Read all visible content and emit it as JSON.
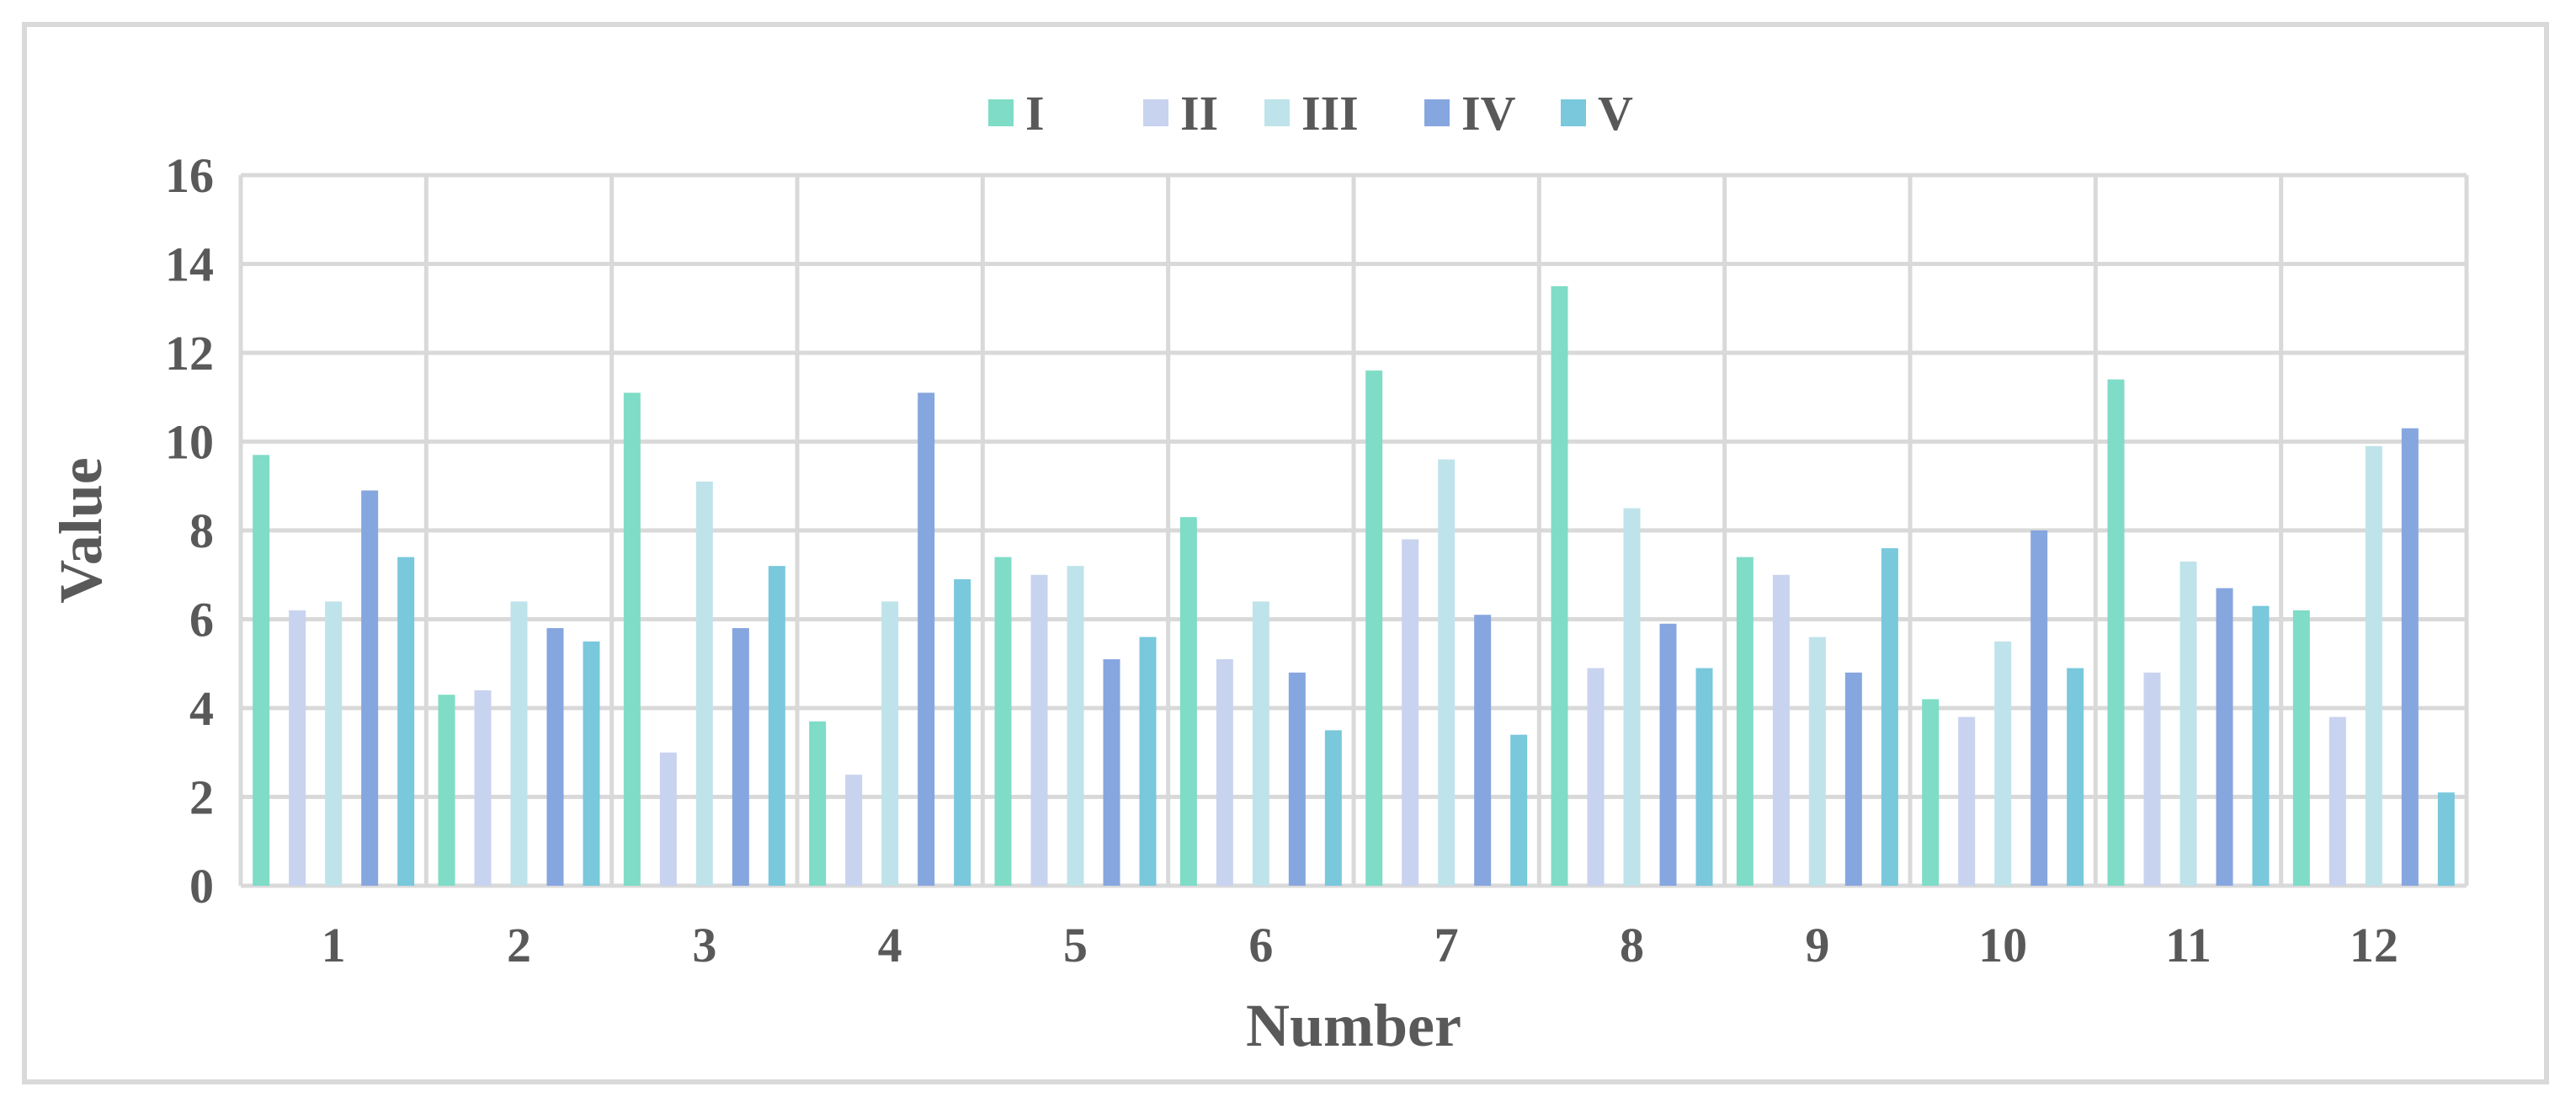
{
  "chart_data": {
    "type": "bar",
    "xlabel": "Number",
    "ylabel": "Value",
    "ylim": [
      0,
      16
    ],
    "yticks": [
      "0",
      "2",
      "4",
      "6",
      "8",
      "10",
      "12",
      "14",
      "16"
    ],
    "categories": [
      "1",
      "2",
      "3",
      "4",
      "5",
      "6",
      "7",
      "8",
      "9",
      "10",
      "11",
      "12"
    ],
    "grid": true,
    "legend_position": "top",
    "series": [
      {
        "name": "I",
        "color": "#7fdcc6",
        "values": [
          9.7,
          4.3,
          11.1,
          3.7,
          7.4,
          8.3,
          11.6,
          13.5,
          7.4,
          4.2,
          11.4,
          6.2
        ]
      },
      {
        "name": "II",
        "color": "#c8d3ef",
        "values": [
          6.2,
          4.4,
          3.0,
          2.5,
          7.0,
          5.1,
          7.8,
          4.9,
          7.0,
          3.8,
          4.8,
          3.8
        ]
      },
      {
        "name": "III",
        "color": "#bfe3ea",
        "values": [
          6.4,
          6.4,
          9.1,
          6.4,
          7.2,
          6.4,
          9.6,
          8.5,
          5.6,
          5.5,
          7.3,
          9.9
        ]
      },
      {
        "name": "IV",
        "color": "#86a6df",
        "values": [
          8.9,
          5.8,
          5.8,
          11.1,
          5.1,
          4.8,
          6.1,
          5.9,
          4.8,
          8.0,
          6.7,
          10.3
        ]
      },
      {
        "name": "V",
        "color": "#79c8dc",
        "values": [
          7.4,
          5.5,
          7.2,
          6.9,
          5.6,
          3.5,
          3.4,
          4.9,
          7.6,
          4.9,
          6.3,
          2.1
        ]
      }
    ]
  }
}
